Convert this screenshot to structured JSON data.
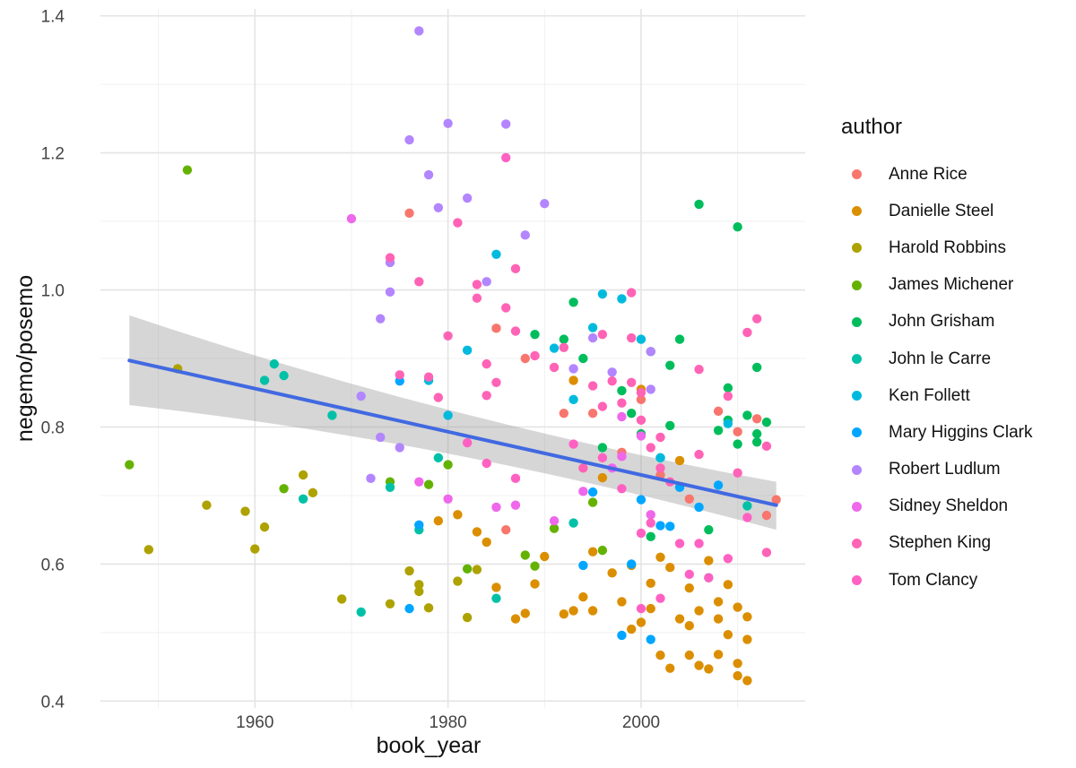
{
  "chart_data": {
    "type": "scatter",
    "xlabel": "book_year",
    "ylabel": "negemo/posemo",
    "xlim": [
      1944,
      2017
    ],
    "ylim": [
      0.39,
      1.41
    ],
    "x_ticks": [
      1960,
      1980,
      2000
    ],
    "y_ticks": [
      0.4,
      0.6,
      0.8,
      1.0,
      1.2,
      1.4
    ],
    "y_tick_labels": [
      "0.4",
      "0.6",
      "0.8",
      "1.0",
      "1.2",
      "1.4"
    ],
    "grid": true,
    "legend": {
      "title": "author",
      "placement": "right"
    },
    "trend": {
      "method": "linear",
      "color": "#4169E1",
      "points": [
        [
          1947,
          0.897
        ],
        [
          2014,
          0.686
        ]
      ],
      "ci_lower": [
        [
          1947,
          0.832
        ],
        [
          2014,
          0.65
        ]
      ],
      "ci_upper": [
        [
          1947,
          0.963
        ],
        [
          2014,
          0.72
        ]
      ],
      "ci_mid": [
        [
          1980,
          0.78
        ],
        [
          1980,
          0.807
        ]
      ]
    },
    "series": [
      {
        "name": "Anne Rice",
        "color": "#F8766D",
        "points": [
          [
            1976,
            1.112
          ],
          [
            1985,
            0.944
          ],
          [
            1986,
            0.65
          ],
          [
            1988,
            0.9
          ],
          [
            1992,
            0.82
          ],
          [
            1995,
            0.82
          ],
          [
            1998,
            0.763
          ],
          [
            2000,
            0.84
          ],
          [
            2002,
            0.73
          ],
          [
            2005,
            0.695
          ],
          [
            2008,
            0.823
          ],
          [
            2010,
            0.793
          ],
          [
            2012,
            0.812
          ],
          [
            2013,
            0.671
          ],
          [
            2014,
            0.694
          ]
        ]
      },
      {
        "name": "Danielle Steel",
        "color": "#DB8E00",
        "points": [
          [
            1979,
            0.663
          ],
          [
            1981,
            0.672
          ],
          [
            1983,
            0.647
          ],
          [
            1984,
            0.632
          ],
          [
            1985,
            0.566
          ],
          [
            1987,
            0.52
          ],
          [
            1988,
            0.528
          ],
          [
            1989,
            0.571
          ],
          [
            1990,
            0.611
          ],
          [
            1992,
            0.527
          ],
          [
            1993,
            0.868
          ],
          [
            1993,
            0.532
          ],
          [
            1994,
            0.552
          ],
          [
            1995,
            0.618
          ],
          [
            1995,
            0.532
          ],
          [
            1996,
            0.726
          ],
          [
            1997,
            0.587
          ],
          [
            1998,
            0.545
          ],
          [
            1999,
            0.598
          ],
          [
            1999,
            0.505
          ],
          [
            2000,
            0.515
          ],
          [
            2000,
            0.855
          ],
          [
            2001,
            0.572
          ],
          [
            2001,
            0.535
          ],
          [
            2002,
            0.61
          ],
          [
            2002,
            0.467
          ],
          [
            2003,
            0.595
          ],
          [
            2003,
            0.448
          ],
          [
            2004,
            0.751
          ],
          [
            2004,
            0.52
          ],
          [
            2005,
            0.565
          ],
          [
            2005,
            0.467
          ],
          [
            2005,
            0.51
          ],
          [
            2006,
            0.532
          ],
          [
            2006,
            0.452
          ],
          [
            2007,
            0.605
          ],
          [
            2007,
            0.447
          ],
          [
            2008,
            0.545
          ],
          [
            2008,
            0.468
          ],
          [
            2008,
            0.52
          ],
          [
            2009,
            0.57
          ],
          [
            2009,
            0.497
          ],
          [
            2010,
            0.537
          ],
          [
            2010,
            0.455
          ],
          [
            2010,
            0.437
          ],
          [
            2011,
            0.523
          ],
          [
            2011,
            0.49
          ],
          [
            2011,
            0.43
          ]
        ]
      },
      {
        "name": "Harold Robbins",
        "color": "#AEA200",
        "points": [
          [
            1949,
            0.621
          ],
          [
            1952,
            0.885
          ],
          [
            1955,
            0.686
          ],
          [
            1959,
            0.677
          ],
          [
            1960,
            0.622
          ],
          [
            1961,
            0.654
          ],
          [
            1965,
            0.73
          ],
          [
            1966,
            0.704
          ],
          [
            1969,
            0.549
          ],
          [
            1974,
            0.542
          ],
          [
            1976,
            0.59
          ],
          [
            1977,
            0.57
          ],
          [
            1977,
            0.56
          ],
          [
            1978,
            0.536
          ],
          [
            1981,
            0.575
          ],
          [
            1982,
            0.522
          ],
          [
            1983,
            0.592
          ]
        ]
      },
      {
        "name": "James Michener",
        "color": "#64B200",
        "points": [
          [
            1947,
            0.745
          ],
          [
            1953,
            1.175
          ],
          [
            1963,
            0.71
          ],
          [
            1974,
            0.72
          ],
          [
            1978,
            0.716
          ],
          [
            1980,
            0.745
          ],
          [
            1982,
            0.593
          ],
          [
            1988,
            0.613
          ],
          [
            1989,
            0.597
          ],
          [
            1991,
            0.652
          ],
          [
            1995,
            0.69
          ],
          [
            1996,
            0.62
          ]
        ]
      },
      {
        "name": "John Grisham",
        "color": "#00BD5C",
        "points": [
          [
            1989,
            0.935
          ],
          [
            1992,
            0.928
          ],
          [
            1993,
            0.982
          ],
          [
            1994,
            0.9
          ],
          [
            1996,
            0.77
          ],
          [
            1998,
            0.853
          ],
          [
            1999,
            0.82
          ],
          [
            2000,
            0.79
          ],
          [
            2001,
            0.91
          ],
          [
            2001,
            0.64
          ],
          [
            2002,
            0.755
          ],
          [
            2003,
            0.89
          ],
          [
            2003,
            0.802
          ],
          [
            2004,
            0.928
          ],
          [
            2006,
            1.125
          ],
          [
            2007,
            0.65
          ],
          [
            2008,
            0.795
          ],
          [
            2009,
            0.857
          ],
          [
            2009,
            0.81
          ],
          [
            2010,
            1.092
          ],
          [
            2010,
            0.775
          ],
          [
            2011,
            0.817
          ],
          [
            2012,
            0.887
          ],
          [
            2012,
            0.79
          ],
          [
            2012,
            0.778
          ],
          [
            2013,
            0.807
          ]
        ]
      },
      {
        "name": "John le Carre",
        "color": "#00C1A7",
        "points": [
          [
            1961,
            0.868
          ],
          [
            1962,
            0.892
          ],
          [
            1963,
            0.875
          ],
          [
            1965,
            0.695
          ],
          [
            1968,
            0.817
          ],
          [
            1971,
            0.53
          ],
          [
            1974,
            0.712
          ],
          [
            1977,
            0.65
          ],
          [
            1985,
            0.55
          ],
          [
            1979,
            0.755
          ],
          [
            1993,
            0.66
          ],
          [
            2007,
            0.58
          ],
          [
            2011,
            0.685
          ]
        ]
      },
      {
        "name": "Ken Follett",
        "color": "#00BADE",
        "points": [
          [
            1978,
            0.868
          ],
          [
            1980,
            0.817
          ],
          [
            1982,
            0.912
          ],
          [
            1985,
            1.052
          ],
          [
            1991,
            0.915
          ],
          [
            1993,
            0.84
          ],
          [
            1995,
            0.945
          ],
          [
            1996,
            0.994
          ],
          [
            1998,
            0.987
          ],
          [
            2000,
            0.928
          ],
          [
            2002,
            0.755
          ],
          [
            2009,
            0.805
          ]
        ]
      },
      {
        "name": "Mary Higgins Clark",
        "color": "#00A6FF",
        "points": [
          [
            1975,
            0.867
          ],
          [
            1976,
            0.535
          ],
          [
            1977,
            0.657
          ],
          [
            1994,
            0.598
          ],
          [
            1995,
            0.705
          ],
          [
            1998,
            0.496
          ],
          [
            1999,
            0.6
          ],
          [
            2000,
            0.694
          ],
          [
            2001,
            0.49
          ],
          [
            2002,
            0.656
          ],
          [
            2003,
            0.655
          ],
          [
            2004,
            0.712
          ],
          [
            2006,
            0.683
          ],
          [
            2008,
            0.715
          ]
        ]
      },
      {
        "name": "Robert Ludlum",
        "color": "#B385FF",
        "points": [
          [
            1971,
            0.845
          ],
          [
            1972,
            0.725
          ],
          [
            1973,
            0.958
          ],
          [
            1973,
            0.785
          ],
          [
            1974,
            1.04
          ],
          [
            1974,
            0.997
          ],
          [
            1975,
            0.77
          ],
          [
            1976,
            1.219
          ],
          [
            1977,
            1.378
          ],
          [
            1978,
            1.168
          ],
          [
            1979,
            1.12
          ],
          [
            1980,
            1.243
          ],
          [
            1982,
            1.134
          ],
          [
            1984,
            1.012
          ],
          [
            1986,
            1.242
          ],
          [
            1988,
            1.08
          ],
          [
            1990,
            1.126
          ],
          [
            1993,
            0.885
          ],
          [
            1995,
            0.93
          ],
          [
            1997,
            0.88
          ],
          [
            2001,
            0.91
          ],
          [
            2001,
            0.855
          ]
        ]
      },
      {
        "name": "Sidney Sheldon",
        "color": "#EF67EB",
        "points": [
          [
            1970,
            1.104
          ],
          [
            1977,
            0.72
          ],
          [
            1980,
            0.695
          ],
          [
            1985,
            0.683
          ],
          [
            1987,
            0.686
          ],
          [
            1991,
            0.663
          ],
          [
            1994,
            0.706
          ],
          [
            1997,
            0.74
          ],
          [
            1998,
            0.757
          ],
          [
            1998,
            0.815
          ],
          [
            2000,
            0.787
          ],
          [
            2001,
            0.672
          ]
        ]
      },
      {
        "name": "Stephen King",
        "color": "#FF63B6",
        "points": [
          [
            1974,
            1.047
          ],
          [
            1975,
            0.876
          ],
          [
            1977,
            1.012
          ],
          [
            1978,
            0.873
          ],
          [
            1979,
            0.843
          ],
          [
            1980,
            0.933
          ],
          [
            1981,
            1.098
          ],
          [
            1983,
            0.988
          ],
          [
            1983,
            1.008
          ],
          [
            1984,
            0.846
          ],
          [
            1984,
            0.892
          ],
          [
            1985,
            0.865
          ],
          [
            1986,
            0.974
          ],
          [
            1987,
            1.031
          ],
          [
            1987,
            0.94
          ],
          [
            1989,
            0.904
          ],
          [
            1991,
            0.887
          ],
          [
            1992,
            0.916
          ],
          [
            1994,
            0.74
          ],
          [
            1995,
            0.86
          ],
          [
            1996,
            0.935
          ],
          [
            1996,
            0.83
          ],
          [
            1997,
            0.867
          ],
          [
            1998,
            0.835
          ],
          [
            1999,
            0.996
          ],
          [
            1999,
            0.93
          ],
          [
            1999,
            0.865
          ],
          [
            2000,
            0.85
          ],
          [
            2000,
            0.81
          ],
          [
            2001,
            0.77
          ],
          [
            2002,
            0.785
          ],
          [
            2002,
            0.74
          ],
          [
            2003,
            0.72
          ],
          [
            2006,
            0.884
          ],
          [
            2006,
            0.76
          ],
          [
            2009,
            0.845
          ],
          [
            2010,
            0.733
          ],
          [
            2011,
            0.938
          ],
          [
            2012,
            0.958
          ],
          [
            2013,
            0.772
          ],
          [
            2013,
            0.617
          ]
        ]
      },
      {
        "name": "Tom Clancy",
        "color": "#FF61C3",
        "points": [
          [
            1982,
            0.777
          ],
          [
            1984,
            0.747
          ],
          [
            1986,
            1.193
          ],
          [
            1987,
            0.725
          ],
          [
            1993,
            0.775
          ],
          [
            1996,
            0.755
          ],
          [
            1998,
            0.71
          ],
          [
            2000,
            0.645
          ],
          [
            2000,
            0.535
          ],
          [
            2001,
            0.66
          ],
          [
            2002,
            0.55
          ],
          [
            2004,
            0.63
          ],
          [
            2005,
            0.585
          ],
          [
            2006,
            0.63
          ],
          [
            2007,
            0.58
          ],
          [
            2009,
            0.608
          ],
          [
            2011,
            0.668
          ]
        ]
      }
    ]
  }
}
